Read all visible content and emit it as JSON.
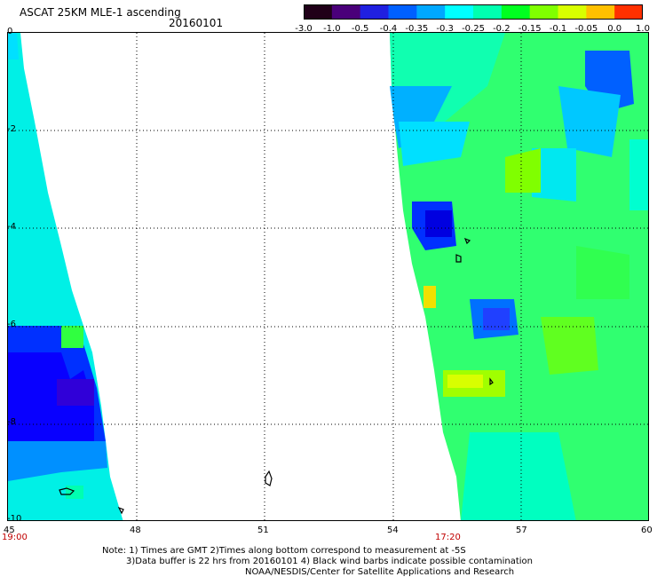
{
  "header": {
    "title": "ASCAT 25KM MLE-1 ascending",
    "date": "20160101"
  },
  "colorbar": {
    "ticks": [
      "-3.0",
      "-1.0",
      "-0.5",
      "-0.4",
      "-0.35",
      "-0.3",
      "-0.25",
      "-0.2",
      "-0.15",
      "-0.1",
      "-0.05",
      "0.0",
      "1.0"
    ],
    "colors": [
      "#200018",
      "#4a007a",
      "#2020e0",
      "#0060ff",
      "#00a8ff",
      "#00ffff",
      "#00ffb0",
      "#00ff20",
      "#80ff00",
      "#d8ff00",
      "#ffc000",
      "#ff3000"
    ]
  },
  "map": {
    "y_ticks": [
      "0",
      "-2",
      "-4",
      "-6",
      "-8",
      "-10"
    ],
    "x_ticks": [
      "45",
      "48",
      "51",
      "54",
      "57",
      "60"
    ],
    "time_labels": [
      "19:00",
      "17:20"
    ],
    "lon_range": [
      45,
      60
    ],
    "lat_range": [
      -10,
      0
    ]
  },
  "notes": {
    "line1": "Note: 1) Times are GMT 2)Times along bottom correspond to measurement at -5S",
    "line2": "3)Data buffer is 22 hrs from 20160101 4) Black wind barbs indicate possible contamination",
    "line3": "NOAA/NESDIS/Center for Satellite Applications and Research"
  }
}
